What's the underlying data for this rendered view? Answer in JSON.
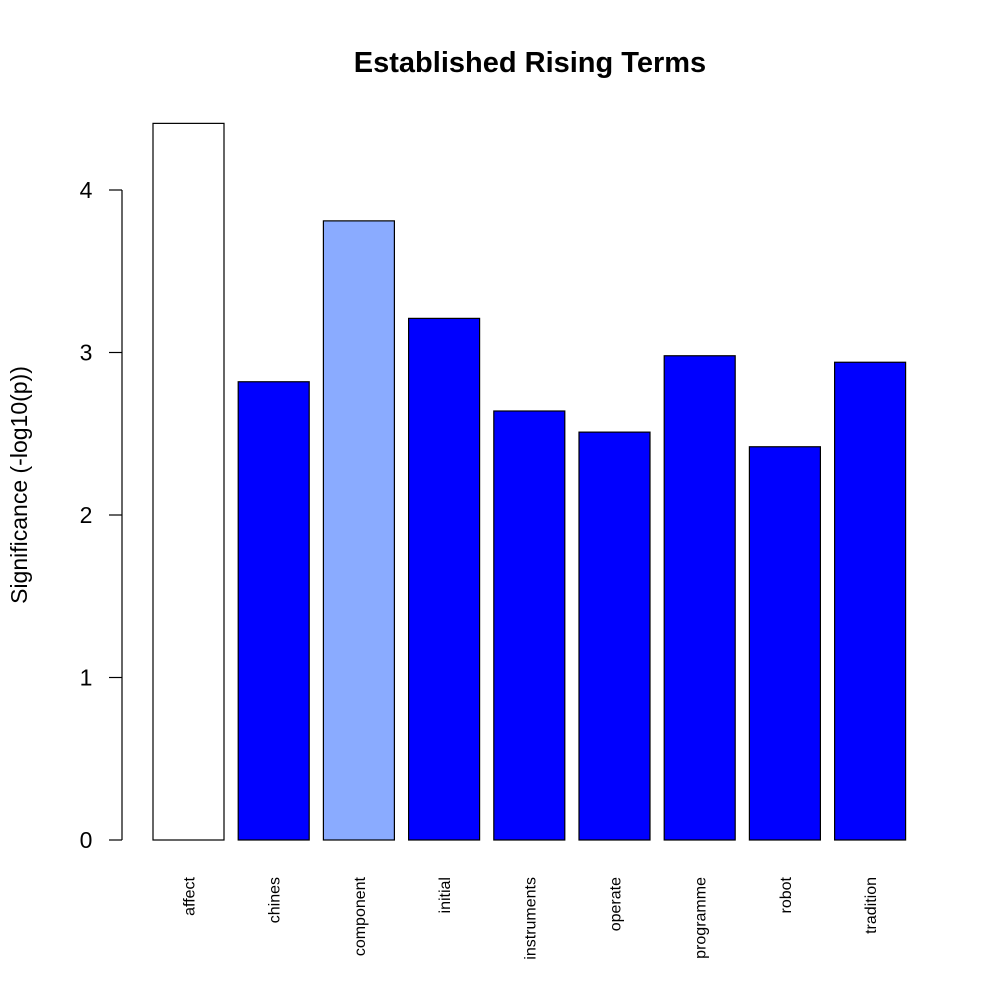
{
  "chart_data": {
    "type": "bar",
    "title": "Established Rising Terms",
    "xlabel": "",
    "ylabel": "Significance (-log10(p))",
    "ylim": [
      0,
      4.41
    ],
    "yticks": [
      "0",
      "1",
      "2",
      "3",
      "4"
    ],
    "grid": false,
    "categories": [
      "affect",
      "chines",
      "component",
      "initial",
      "instruments",
      "operate",
      "programme",
      "robot",
      "tradition"
    ],
    "values": [
      4.41,
      2.82,
      3.81,
      3.21,
      2.64,
      2.51,
      2.98,
      2.42,
      2.94
    ],
    "colors": [
      "#ffffff",
      "#0000ff",
      "#8aabff",
      "#0000ff",
      "#0000ff",
      "#0000ff",
      "#0000ff",
      "#0000ff",
      "#0000ff"
    ]
  }
}
